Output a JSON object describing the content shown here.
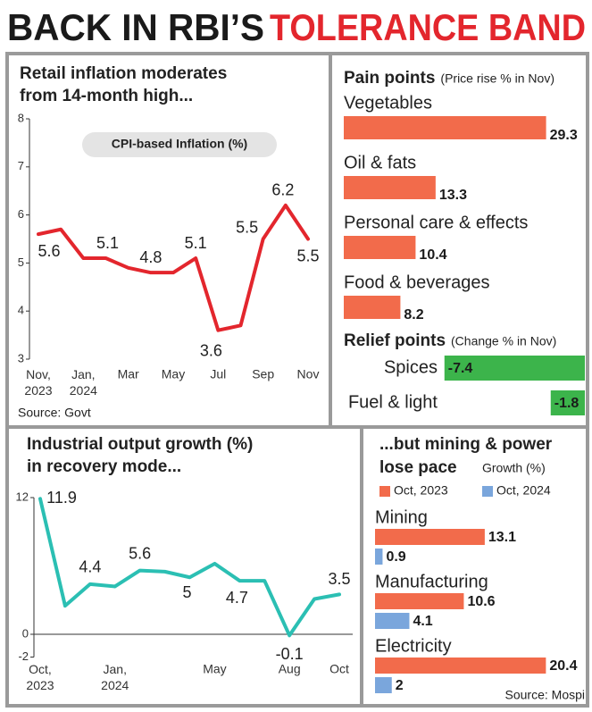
{
  "header": {
    "title_part1": "BACK IN RBI’S",
    "title_part2": "TOLERANCE BAND"
  },
  "chart_data": [
    {
      "type": "line",
      "title": [
        "Retail inflation moderates",
        "from 14-month high..."
      ],
      "subtitle": "CPI-based Inflation (%)",
      "source": "Source: Govt",
      "categories": [
        "Nov, 2023",
        null,
        "Jan, 2024",
        null,
        "Mar",
        null,
        "May",
        null,
        "Jul",
        null,
        "Sep",
        null,
        "Nov"
      ],
      "values": [
        5.6,
        5.7,
        5.1,
        5.1,
        4.9,
        4.8,
        4.8,
        5.1,
        3.6,
        3.7,
        5.5,
        6.2,
        5.5
      ],
      "value_labels": [
        "5.6",
        null,
        null,
        "5.1",
        null,
        "4.8",
        null,
        "5.1",
        "3.6",
        null,
        "5.5",
        "6.2",
        "5.5"
      ],
      "color": "#e3262d",
      "ylim": [
        3,
        8
      ],
      "yticks": [
        3,
        4,
        5,
        6,
        7,
        8
      ]
    },
    {
      "type": "hbar",
      "title": "Pain points",
      "subtitle": "(Price rise % in Nov)",
      "categories": [
        "Vegetables",
        "Oil & fats",
        "Personal care & effects",
        "Food & beverages"
      ],
      "values": [
        29.3,
        13.3,
        10.4,
        8.2
      ],
      "color": "#f26b4b",
      "xlim": [
        0,
        30
      ]
    },
    {
      "type": "hbar",
      "title": "Relief points",
      "subtitle": "(Change % in Nov)",
      "categories": [
        "Spices",
        "Fuel & light"
      ],
      "values": [
        -7.4,
        -1.8
      ],
      "color": "#3cb44b",
      "xlim": [
        -8,
        0
      ]
    },
    {
      "type": "line",
      "title": [
        "Industrial output growth (%)",
        "in recovery mode..."
      ],
      "categories": [
        "Oct, 2023",
        null,
        null,
        "Jan, 2024",
        null,
        null,
        null,
        "May",
        null,
        null,
        "Aug",
        null,
        "Oct"
      ],
      "values": [
        11.9,
        2.5,
        4.4,
        4.2,
        5.6,
        5.5,
        5.0,
        6.2,
        4.7,
        4.7,
        -0.1,
        3.1,
        3.5
      ],
      "value_labels": [
        "11.9",
        null,
        "4.4",
        null,
        "5.6",
        null,
        "5",
        null,
        "4.7",
        null,
        "-0.1",
        null,
        "3.5"
      ],
      "color": "#2bbfb3",
      "ylim": [
        -2,
        12
      ],
      "yticks": [
        -2,
        0,
        12
      ]
    },
    {
      "type": "grouped_hbar",
      "title": [
        "...but mining & power",
        "lose pace"
      ],
      "subtitle": "Growth (%)",
      "source": "Source: Mospi",
      "categories": [
        "Mining",
        "Manufacturing",
        "Electricity"
      ],
      "series": [
        {
          "name": "Oct, 2023",
          "color": "#f26b4b",
          "values": [
            13.1,
            10.6,
            20.4
          ]
        },
        {
          "name": "Oct, 2024",
          "color": "#7aa6dc",
          "values": [
            0.9,
            4.1,
            2
          ]
        }
      ],
      "xlim": [
        0,
        21
      ]
    }
  ]
}
